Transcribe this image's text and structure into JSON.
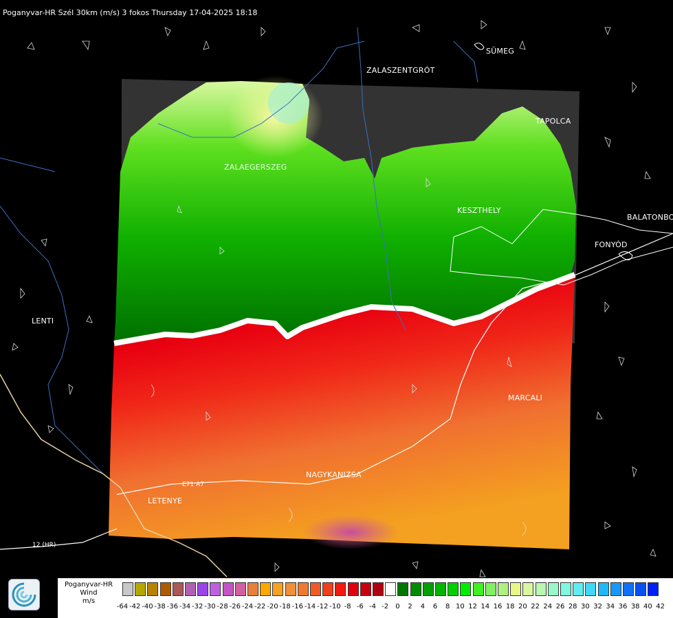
{
  "title": "Poganyvar-HR Szél 30km (m/s) 3 fokos Thursday 17-04-2025 18:18",
  "cities": [
    {
      "name": "SÜMEG"
    },
    {
      "name": "ZALASZENTGRÓT"
    },
    {
      "name": "TAPOLCA"
    },
    {
      "name": "ZALAEGERSZEG"
    },
    {
      "name": "KESZTHELY"
    },
    {
      "name": "BALATONBO"
    },
    {
      "name": "FONYÓD"
    },
    {
      "name": "LENTI"
    },
    {
      "name": "MARCALI"
    },
    {
      "name": "NAGYKANIZSA"
    },
    {
      "name": "LETENYE"
    }
  ],
  "roads": [
    {
      "name": "12 (HR)"
    },
    {
      "name": "E71 A7"
    }
  ],
  "legend": {
    "source": "Poganyvar-HR",
    "variable": "Wind",
    "unit": "m/s",
    "labels": [
      "-64",
      "-42",
      "-40",
      "-38",
      "-36",
      "-34",
      "-32",
      "-30",
      "-28",
      "-26",
      "-24",
      "-22",
      "-20",
      "-18",
      "-16",
      "-14",
      "-12",
      "-10",
      "-8",
      "-6",
      "-4",
      "-2",
      "0",
      "2",
      "4",
      "6",
      "8",
      "10",
      "12",
      "14",
      "16",
      "18",
      "20",
      "22",
      "24",
      "26",
      "28",
      "30",
      "32",
      "34",
      "36",
      "38",
      "40",
      "42"
    ],
    "colors": [
      "#c8c8c8",
      "#b4a800",
      "#b88200",
      "#b05a00",
      "#aa5858",
      "#b060b0",
      "#9a44e8",
      "#c060e0",
      "#c454c4",
      "#d260a0",
      "#e8803c",
      "#fca800",
      "#f8a020",
      "#f09038",
      "#f07a30",
      "#f05a28",
      "#f03e1e",
      "#f01a10",
      "#e00010",
      "#c80010",
      "#b00010",
      "#ffffff",
      "#007800",
      "#008c00",
      "#00a000",
      "#00b400",
      "#00d000",
      "#00ec00",
      "#40f020",
      "#80f060",
      "#b0f080",
      "#e8f888",
      "#d8f8a0",
      "#b8f8b0",
      "#98f8c8",
      "#80f8e0",
      "#60ecf0",
      "#40d8f8",
      "#20b8f8",
      "#1898f8",
      "#1070f8",
      "#0850f0",
      "#0020f8"
    ]
  }
}
